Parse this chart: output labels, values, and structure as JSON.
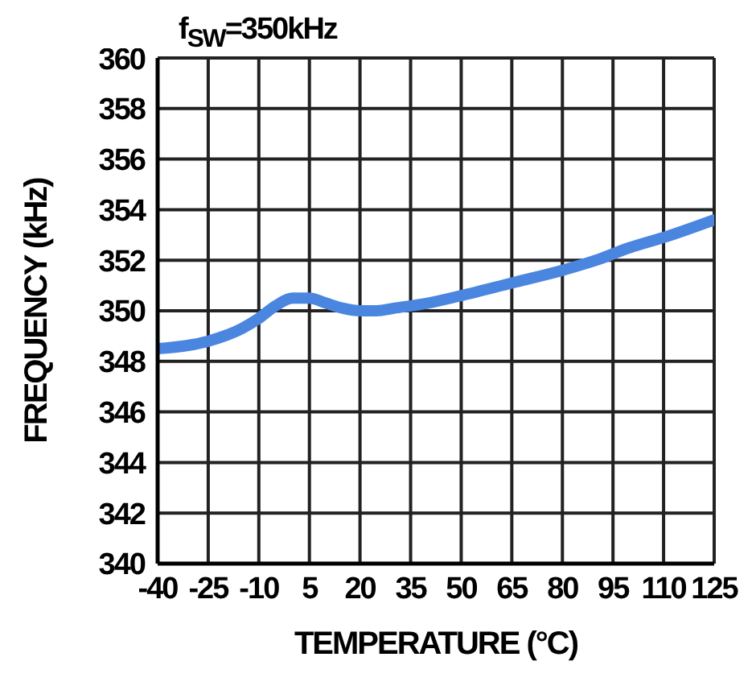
{
  "chart_data": {
    "type": "line",
    "title": "f$_{SW}$=350kHz",
    "xlabel": "TEMPERATURE (°C)",
    "ylabel": "FREQUENCY (kHz)",
    "x": [
      -40,
      -25,
      -15,
      -10,
      -5,
      0,
      5,
      10,
      15,
      20,
      25,
      30,
      40,
      50,
      65,
      80,
      90,
      100,
      110,
      125
    ],
    "series": [
      {
        "color": "#4a86e0",
        "values": [
          348.5,
          348.8,
          349.3,
          349.7,
          350.2,
          350.5,
          350.5,
          350.3,
          350.1,
          350.0,
          350.0,
          350.1,
          350.3,
          350.6,
          351.1,
          351.6,
          352.0,
          352.5,
          352.9,
          353.6
        ]
      }
    ],
    "xlim": [
      -40,
      125
    ],
    "xticks": [
      -40,
      -25,
      -10,
      5,
      20,
      35,
      50,
      65,
      80,
      95,
      110,
      125
    ],
    "ylim": [
      340,
      360
    ],
    "yticks": [
      340,
      342,
      344,
      346,
      348,
      350,
      352,
      354,
      356,
      358,
      360
    ],
    "grid": true,
    "marker": "none",
    "line_style": "solid"
  }
}
